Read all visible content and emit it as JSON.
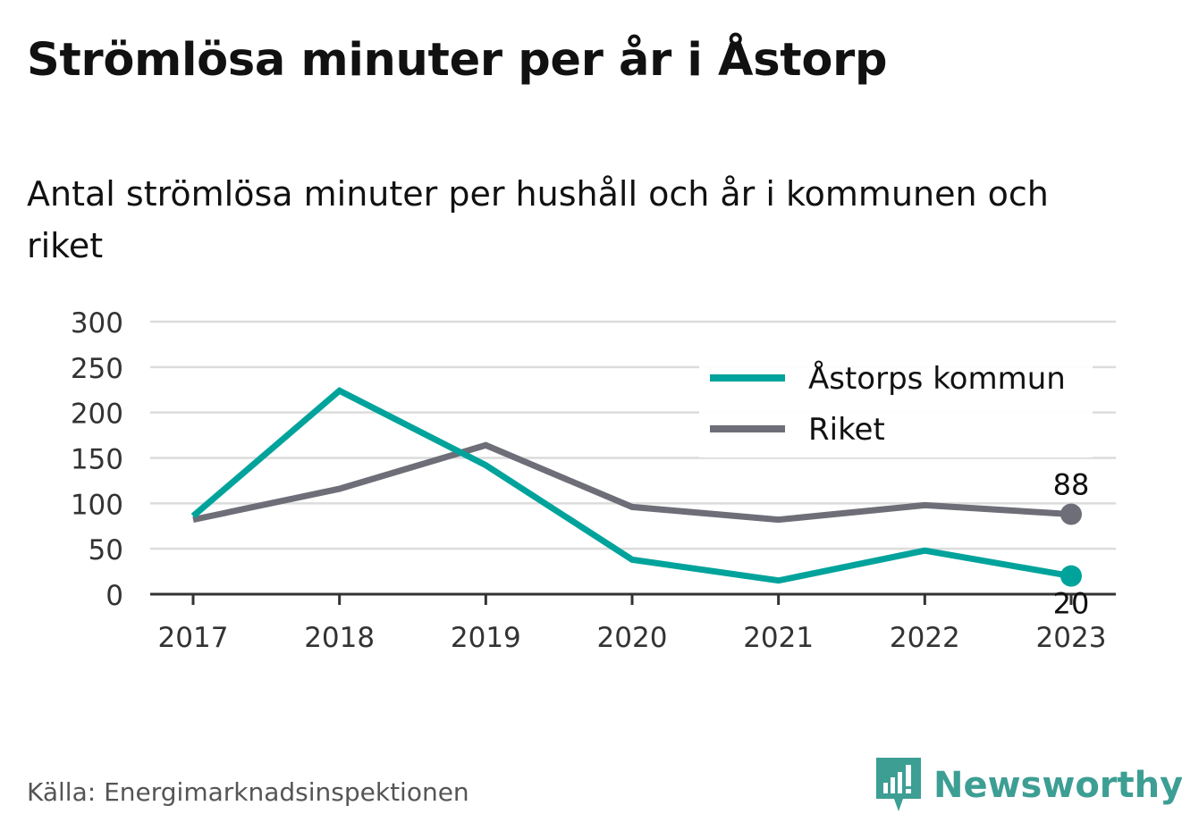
{
  "title": "Strömlösa minuter per år i Åstorp",
  "subtitle": "Antal strömlösa minuter per hushåll och år i kommunen och riket",
  "source": "Källa: Energimarknadsinspektionen",
  "brand": {
    "name": "Newsworthy",
    "logo_icon": "bar-chart-speech-bubble-icon",
    "color": "#3d9e94"
  },
  "chart_data": {
    "type": "line",
    "x": [
      "2017",
      "2018",
      "2019",
      "2020",
      "2021",
      "2022",
      "2023"
    ],
    "ylim": [
      0,
      300
    ],
    "yticks": [
      0,
      50,
      100,
      150,
      200,
      250,
      300
    ],
    "grid": true,
    "legend_position": "top-right",
    "series": [
      {
        "name": "Åstorps kommun",
        "color": "#00a39b",
        "values": [
          86,
          224,
          142,
          38,
          15,
          48,
          20
        ],
        "end_label": "20"
      },
      {
        "name": "Riket",
        "color": "#6e6e78",
        "values": [
          82,
          116,
          164,
          96,
          82,
          98,
          88
        ],
        "end_label": "88"
      }
    ]
  }
}
